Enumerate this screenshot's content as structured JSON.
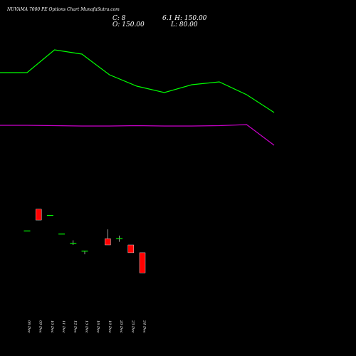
{
  "chart_data": {
    "type": "candlestick",
    "title": "NUVAMA 7000  PE Options  Chart MunafaSutra.com",
    "ohlc_readout": {
      "close": "C: 8",
      "high_line": "6.1 H: 150.00",
      "open": "O: 150.00",
      "low": "L: 80.00"
    },
    "x_labels": [
      "06 Dec",
      "09 Dec",
      "10 Dec",
      "11 Dec",
      "12 Dec",
      "13 Dec",
      "16 Dec",
      "19 Dec",
      "20 Dec",
      "23 Dec",
      "24 Dec"
    ],
    "price_range": [
      0,
      110
    ],
    "candles": [
      {
        "open": 53,
        "high": 53,
        "low": 53,
        "close": 53
      },
      {
        "open": 67,
        "high": 67,
        "low": 60,
        "close": 60
      },
      {
        "open": 63,
        "high": 63,
        "low": 63,
        "close": 63
      },
      {
        "open": 51,
        "high": 51,
        "low": 51,
        "close": 51
      },
      {
        "open": 45,
        "high": 47,
        "low": 44,
        "close": 45
      },
      {
        "open": 40,
        "high": 40,
        "low": 38,
        "close": 40
      },
      {
        "open": null,
        "high": null,
        "low": null,
        "close": null
      },
      {
        "open": 48,
        "high": 54,
        "low": 44,
        "close": 44
      },
      {
        "open": 48,
        "high": 50,
        "low": 46,
        "close": 48
      },
      {
        "open": 44,
        "high": 44,
        "low": 39,
        "close": 39
      },
      {
        "open": 39,
        "high": 39,
        "low": 26,
        "close": 26
      }
    ],
    "green_line": [
      102,
      102,
      70,
      76,
      105,
      121,
      130,
      119,
      115,
      133,
      158
    ],
    "purple_line": [
      176,
      176,
      176.5,
      177,
      177,
      176.5,
      177,
      177,
      176.5,
      175,
      204
    ],
    "colors": {
      "background": "#000000",
      "up": "#00ff00",
      "down": "#ff0000",
      "green_line": "#00ff00",
      "purple_line": "#cc00cc",
      "wick": "#ffffff"
    }
  }
}
